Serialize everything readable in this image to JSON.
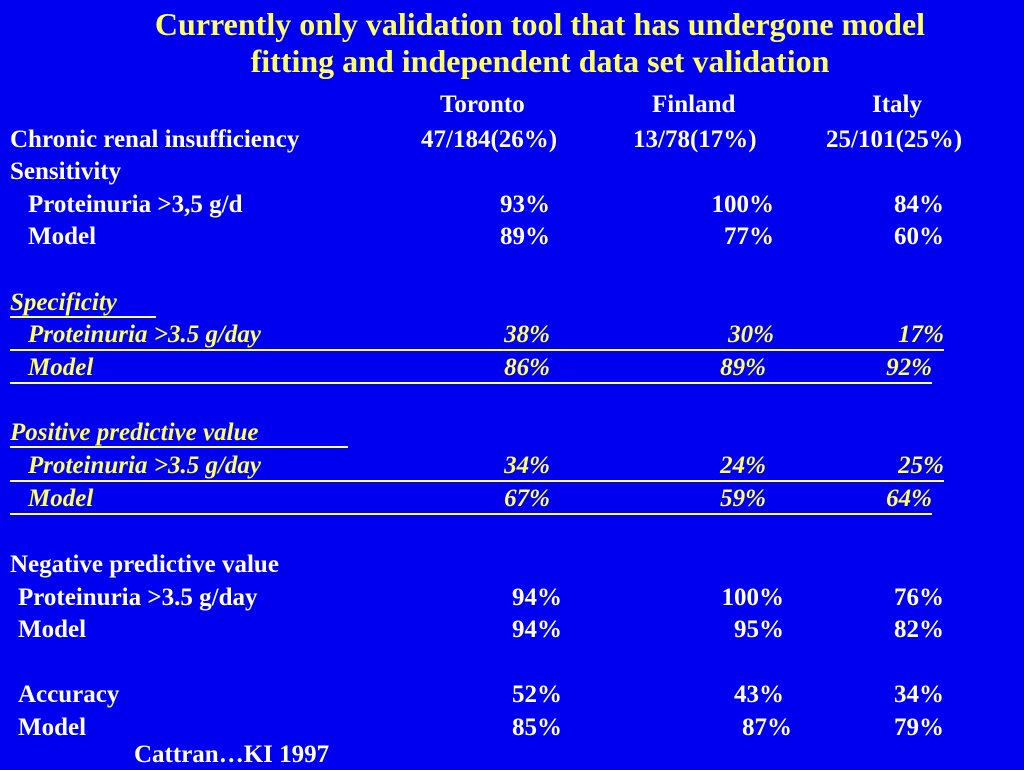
{
  "title": {
    "line1": "Currently only validation tool that has undergone model",
    "line2": "fitting and independent data set validation"
  },
  "columns": [
    "Toronto",
    "Finland",
    "Italy"
  ],
  "crf": {
    "label": "Chronic renal insufficiency",
    "values": [
      "47/184(26%)",
      "13/78(17%)",
      "25/101(25%)"
    ]
  },
  "sensitivity": {
    "label": "Sensitivity",
    "rows": [
      {
        "label": "Proteinuria >3,5 g/d",
        "values": [
          "93%",
          "100%",
          "84%"
        ]
      },
      {
        "label": "Model",
        "values": [
          "89%",
          "77%",
          "60%"
        ]
      }
    ]
  },
  "specificity": {
    "label": "Specificity",
    "rows": [
      {
        "label": "Proteinuria >3.5 g/day",
        "values": [
          "38%",
          "30%",
          "17%"
        ]
      },
      {
        "label": "Model",
        "values": [
          "86%",
          "89%",
          "92%"
        ]
      }
    ]
  },
  "ppv": {
    "label": "Positive predictive value",
    "rows": [
      {
        "label": "Proteinuria >3.5 g/day",
        "values": [
          "34%",
          "24%",
          "25%"
        ]
      },
      {
        "label": "Model",
        "values": [
          "67%",
          "59%",
          "64%"
        ]
      }
    ]
  },
  "npv": {
    "label": "Negative predictive value",
    "rows": [
      {
        "label": "Proteinuria >3.5 g/day",
        "values": [
          "94%",
          "100%",
          "76%"
        ]
      },
      {
        "label": "Model",
        "values": [
          "94%",
          "95%",
          "82%"
        ]
      }
    ]
  },
  "accuracy": {
    "rows": [
      {
        "label": "Accuracy",
        "values": [
          "52%",
          "43%",
          "34%"
        ]
      },
      {
        "label": "Model",
        "values": [
          "85%",
          "87%",
          "79%"
        ]
      }
    ]
  },
  "citation": "Cattran…KI 1997",
  "colors": {
    "background": "#0000f0",
    "title": "#ffff66",
    "text": "#ffffff",
    "highlight": "#ffff66"
  }
}
